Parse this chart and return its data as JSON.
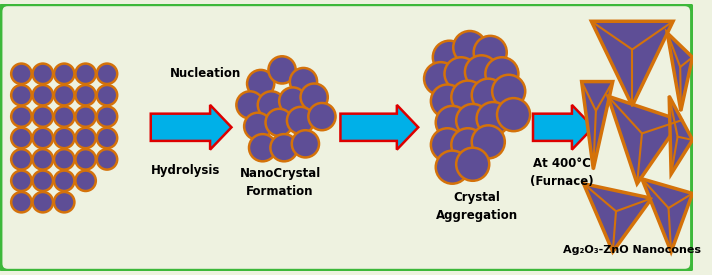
{
  "bg_color": "#eef2e0",
  "border_color": "#3db83a",
  "border_linewidth": 3.5,
  "ball_fill": "#5e4e96",
  "ball_edge": "#d4720a",
  "ball_edge_lw": 1.8,
  "arrow_fill": "#00b0e8",
  "arrow_edge": "#dd0000",
  "arrow_edge_lw": 1.8,
  "cone_fill": "#5e4e96",
  "cone_edge": "#d4720a",
  "cone_edge_lw": 2.5,
  "text_color": "#000000",
  "label_nucleation": "Nucleation",
  "label_hydrolysis": "Hydrolysis",
  "label_nanocrystal": "NanoCrystal\nFormation",
  "label_aggregation": "Crystal\nAggregation",
  "label_furnace": "At 400°C\n(Furnace)",
  "label_nanocones": "Ag₂O₃-ZnO Nanocones",
  "figsize": [
    7.12,
    2.75
  ],
  "dpi": 100
}
